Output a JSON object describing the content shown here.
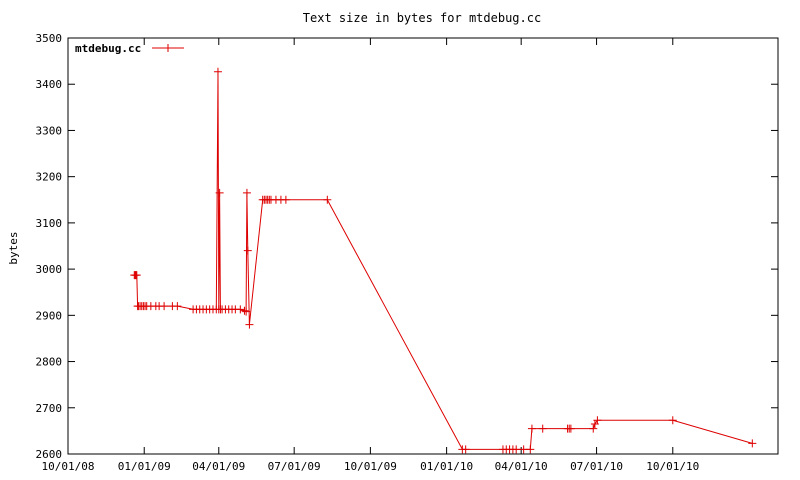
{
  "chart_data": {
    "type": "line",
    "title": "Text size in bytes for mtdebug.cc",
    "xlabel": "",
    "ylabel": "bytes",
    "ylim": [
      2600,
      3500
    ],
    "yticks": [
      2600,
      2700,
      2800,
      2900,
      3000,
      3100,
      3200,
      3300,
      3400,
      3500
    ],
    "xlim": [
      "2008-10-01",
      "2011-02-05"
    ],
    "xticks": [
      {
        "date": "2008-10-01",
        "label": "10/01/08"
      },
      {
        "date": "2009-01-01",
        "label": "01/01/09"
      },
      {
        "date": "2009-04-01",
        "label": "04/01/09"
      },
      {
        "date": "2009-07-01",
        "label": "07/01/09"
      },
      {
        "date": "2009-10-01",
        "label": "10/01/09"
      },
      {
        "date": "2010-01-01",
        "label": "01/01/10"
      },
      {
        "date": "2010-04-01",
        "label": "04/01/10"
      },
      {
        "date": "2010-07-01",
        "label": "07/01/10"
      },
      {
        "date": "2010-10-01",
        "label": "10/01/10"
      }
    ],
    "grid": false,
    "legend_position": "top-left",
    "series": [
      {
        "name": "mtdebug.cc",
        "color": "#dd0000",
        "points": [
          [
            "2008-12-20",
            2987
          ],
          [
            "2008-12-21",
            2987
          ],
          [
            "2008-12-22",
            2987
          ],
          [
            "2008-12-23",
            2987
          ],
          [
            "2008-12-24",
            2920
          ],
          [
            "2008-12-25",
            2920
          ],
          [
            "2008-12-27",
            2920
          ],
          [
            "2008-12-29",
            2920
          ],
          [
            "2008-12-31",
            2920
          ],
          [
            "2009-01-02",
            2920
          ],
          [
            "2009-01-04",
            2920
          ],
          [
            "2009-01-09",
            2920
          ],
          [
            "2009-01-15",
            2920
          ],
          [
            "2009-01-19",
            2920
          ],
          [
            "2009-01-25",
            2920
          ],
          [
            "2009-02-04",
            2920
          ],
          [
            "2009-02-10",
            2920
          ],
          [
            "2009-03-01",
            2913
          ],
          [
            "2009-03-05",
            2913
          ],
          [
            "2009-03-09",
            2913
          ],
          [
            "2009-03-13",
            2913
          ],
          [
            "2009-03-17",
            2913
          ],
          [
            "2009-03-21",
            2913
          ],
          [
            "2009-03-25",
            2913
          ],
          [
            "2009-03-29",
            2913
          ],
          [
            "2009-03-31",
            3427
          ],
          [
            "2009-04-01",
            2913
          ],
          [
            "2009-04-02",
            3165
          ],
          [
            "2009-04-03",
            2913
          ],
          [
            "2009-04-05",
            2913
          ],
          [
            "2009-04-09",
            2913
          ],
          [
            "2009-04-13",
            2913
          ],
          [
            "2009-04-17",
            2913
          ],
          [
            "2009-04-21",
            2913
          ],
          [
            "2009-04-27",
            2913
          ],
          [
            "2009-05-02",
            2910
          ],
          [
            "2009-05-04",
            2908
          ],
          [
            "2009-05-05",
            3165
          ],
          [
            "2009-05-06",
            3040
          ],
          [
            "2009-05-08",
            2880
          ],
          [
            "2009-05-24",
            3150
          ],
          [
            "2009-05-26",
            3150
          ],
          [
            "2009-05-28",
            3150
          ],
          [
            "2009-05-30",
            3150
          ],
          [
            "2009-06-01",
            3150
          ],
          [
            "2009-06-03",
            3150
          ],
          [
            "2009-06-09",
            3150
          ],
          [
            "2009-06-15",
            3150
          ],
          [
            "2009-06-21",
            3150
          ],
          [
            "2009-08-10",
            3150
          ],
          [
            "2010-01-20",
            2610
          ],
          [
            "2010-01-24",
            2610
          ],
          [
            "2010-03-10",
            2610
          ],
          [
            "2010-03-14",
            2610
          ],
          [
            "2010-03-18",
            2610
          ],
          [
            "2010-03-22",
            2610
          ],
          [
            "2010-03-26",
            2610
          ],
          [
            "2010-04-04",
            2610
          ],
          [
            "2010-04-12",
            2610
          ],
          [
            "2010-04-14",
            2655
          ],
          [
            "2010-04-27",
            2655
          ],
          [
            "2010-05-27",
            2655
          ],
          [
            "2010-05-29",
            2655
          ],
          [
            "2010-05-31",
            2655
          ],
          [
            "2010-06-27",
            2655
          ],
          [
            "2010-06-29",
            2665
          ],
          [
            "2010-07-02",
            2673
          ],
          [
            "2010-10-01",
            2673
          ],
          [
            "2011-01-05",
            2623
          ]
        ]
      }
    ]
  }
}
